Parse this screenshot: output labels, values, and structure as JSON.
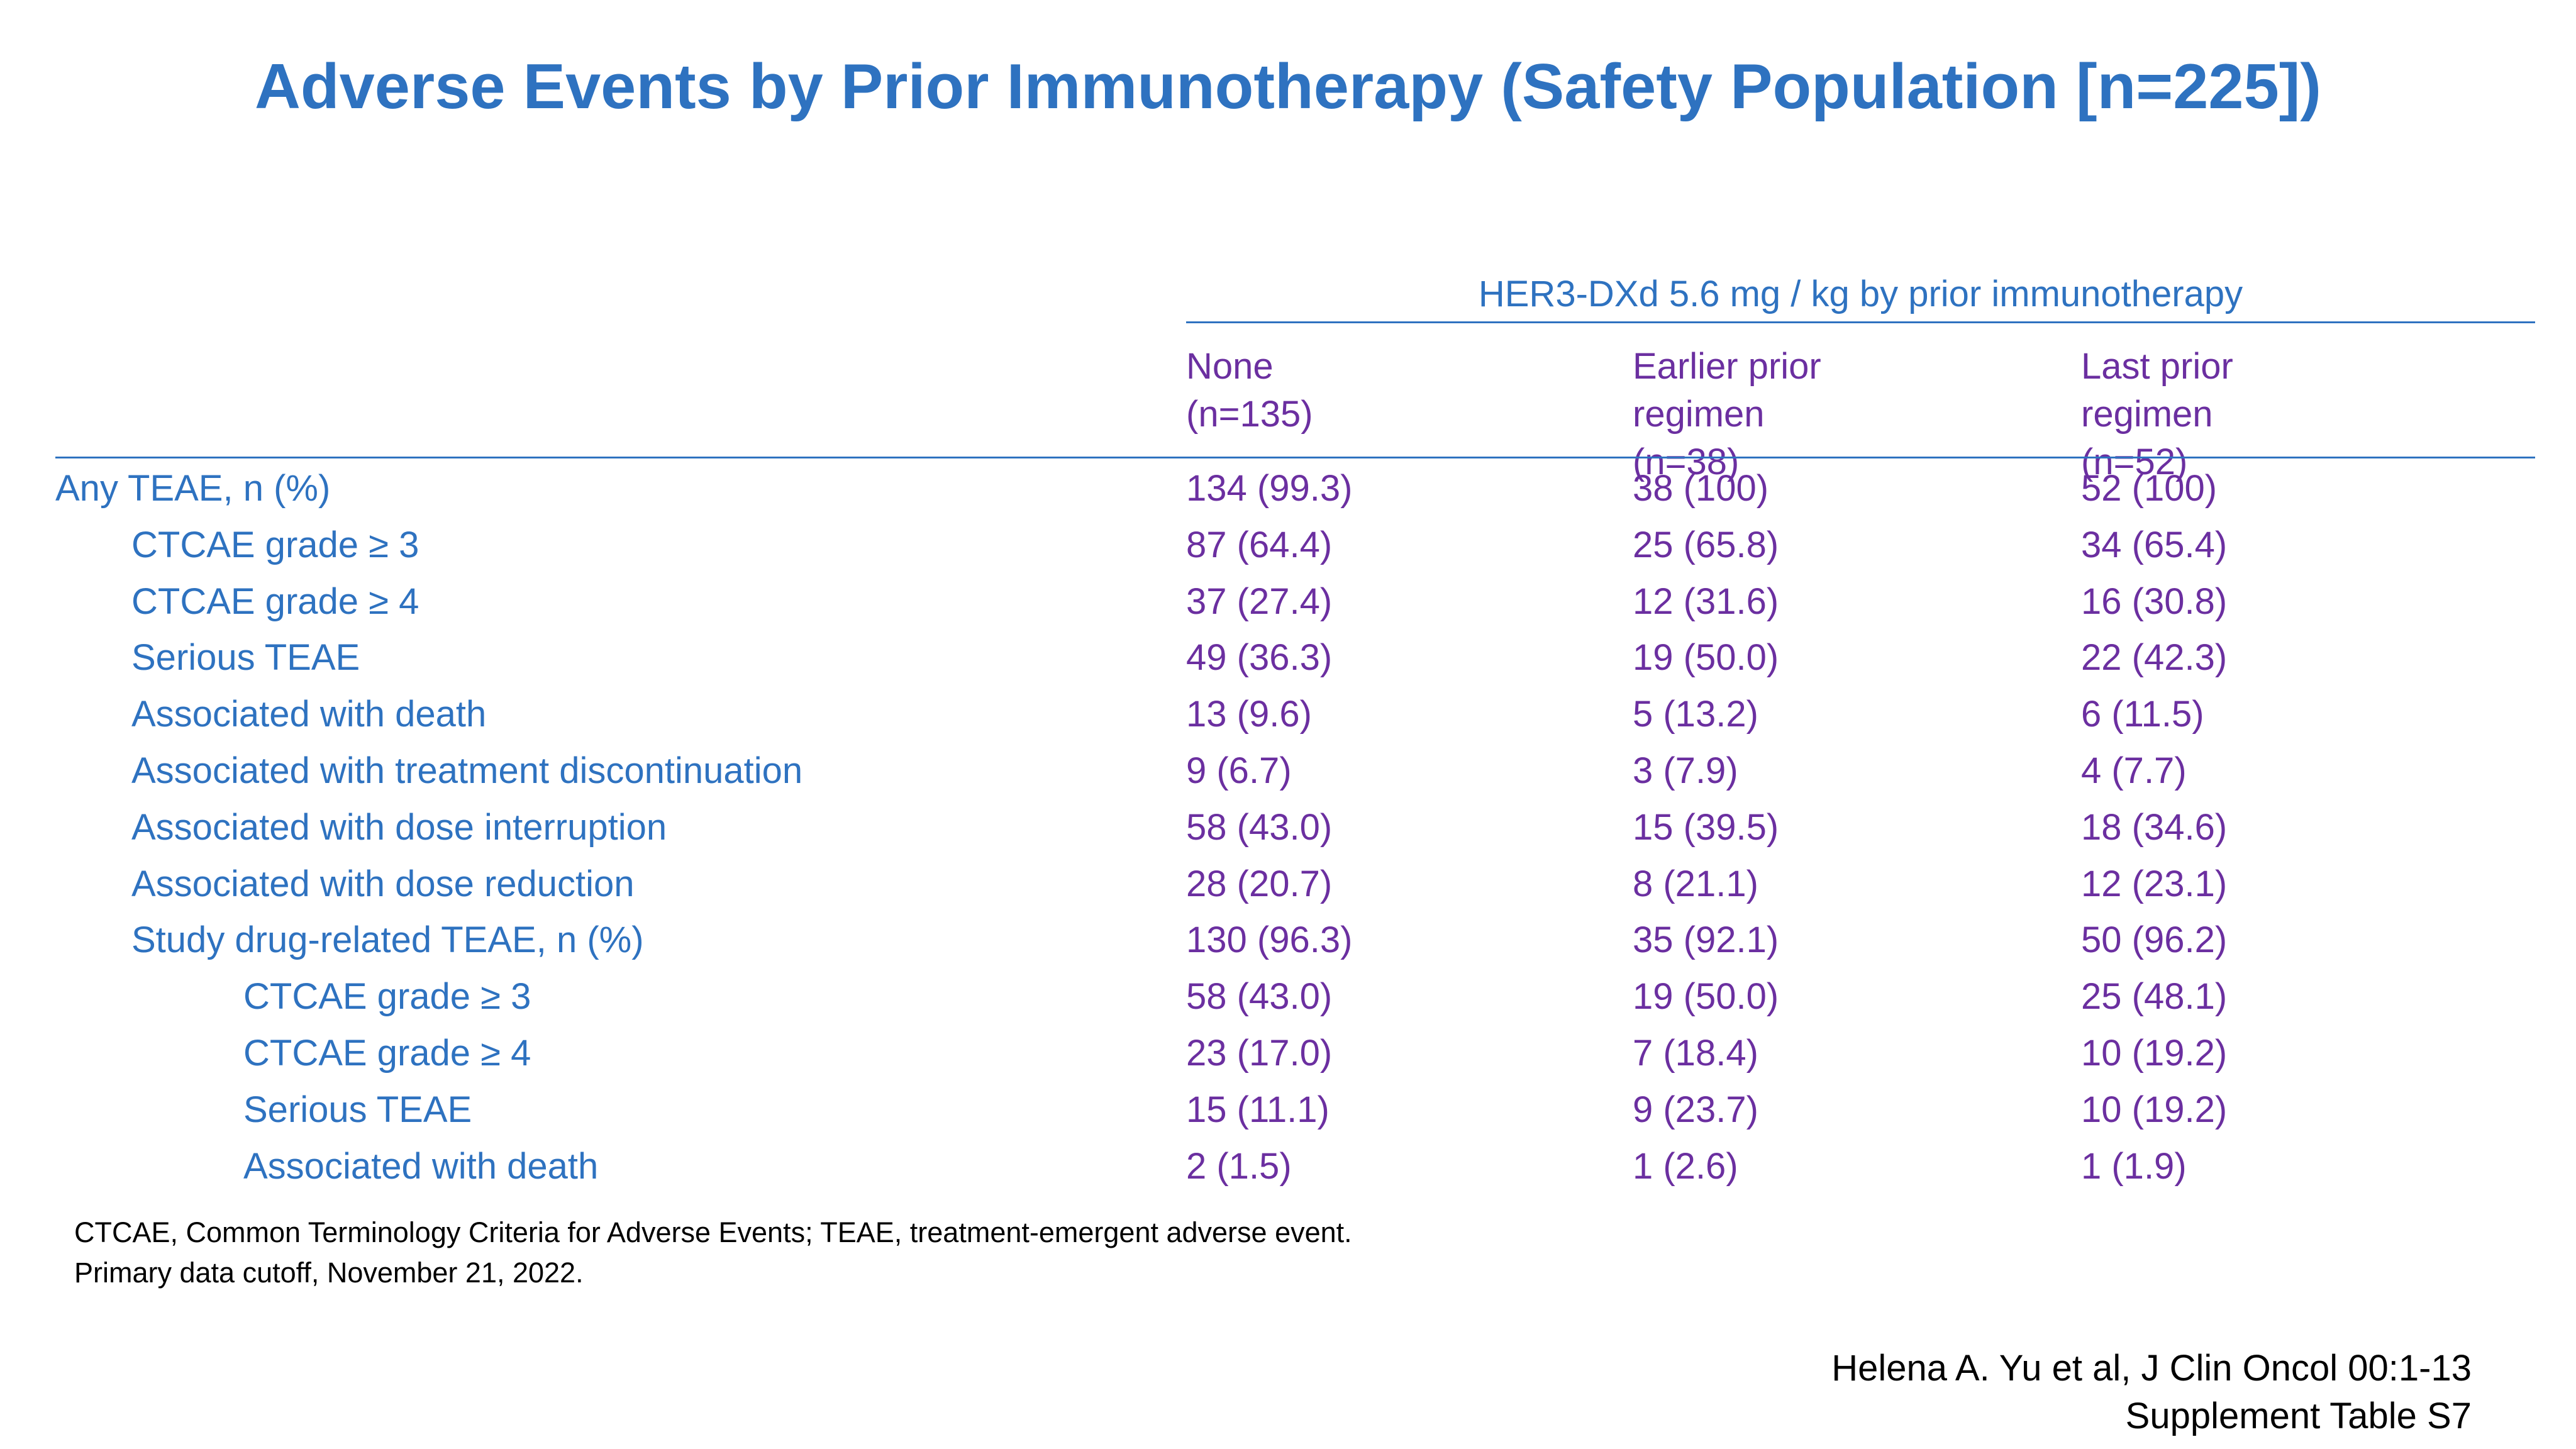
{
  "title": "Adverse Events by Prior Immunotherapy (Safety Population [n=225])",
  "table": {
    "spanner": "HER3-DXd 5.6 mg / kg by prior immunotherapy",
    "columns": [
      [
        "None",
        "(n=135)"
      ],
      [
        "Earlier prior",
        "regimen",
        "(n=38)"
      ],
      [
        "Last prior",
        "regimen",
        "(n=52)"
      ]
    ],
    "rows": [
      {
        "label": "Any TEAE, n (%)",
        "indent": 0,
        "values": [
          "134 (99.3)",
          "38 (100)",
          "52 (100)"
        ]
      },
      {
        "label": "CTCAE grade ≥ 3",
        "indent": 1,
        "values": [
          "87 (64.4)",
          "25 (65.8)",
          "34 (65.4)"
        ]
      },
      {
        "label": "CTCAE grade ≥ 4",
        "indent": 1,
        "values": [
          "37 (27.4)",
          "12 (31.6)",
          "16 (30.8)"
        ]
      },
      {
        "label": "Serious TEAE",
        "indent": 1,
        "values": [
          "49 (36.3)",
          "19 (50.0)",
          "22 (42.3)"
        ]
      },
      {
        "label": "Associated with death",
        "indent": 1,
        "values": [
          "13 (9.6)",
          "5 (13.2)",
          "6 (11.5)"
        ]
      },
      {
        "label": "Associated with treatment discontinuation",
        "indent": 1,
        "values": [
          "9 (6.7)",
          "3 (7.9)",
          "4 (7.7)"
        ]
      },
      {
        "label": "Associated with dose interruption",
        "indent": 1,
        "values": [
          "58 (43.0)",
          "15 (39.5)",
          "18 (34.6)"
        ]
      },
      {
        "label": "Associated with dose reduction",
        "indent": 1,
        "values": [
          "28 (20.7)",
          "8 (21.1)",
          "12 (23.1)"
        ]
      },
      {
        "label": "Study drug-related TEAE, n (%)",
        "indent": 1,
        "values": [
          "130 (96.3)",
          "35 (92.1)",
          "50 (96.2)"
        ]
      },
      {
        "label": "CTCAE grade ≥ 3",
        "indent": 2,
        "values": [
          "58 (43.0)",
          "19 (50.0)",
          "25 (48.1)"
        ]
      },
      {
        "label": "CTCAE grade ≥ 4",
        "indent": 2,
        "values": [
          "23 (17.0)",
          "7 (18.4)",
          "10 (19.2)"
        ]
      },
      {
        "label": "Serious TEAE",
        "indent": 2,
        "values": [
          "15 (11.1)",
          "9 (23.7)",
          "10 (19.2)"
        ]
      },
      {
        "label": "Associated with death",
        "indent": 2,
        "values": [
          "2 (1.5)",
          "1 (2.6)",
          "1 (1.9)"
        ]
      }
    ]
  },
  "footnote": [
    "CTCAE, Common Terminology Criteria for Adverse Events; TEAE, treatment-emergent adverse event.",
    "Primary data cutoff, November 21, 2022."
  ],
  "citation": [
    "Helena A. Yu et al, J Clin Oncol 00:1-13",
    "Supplement Table S7"
  ],
  "colors": {
    "label_blue": "#2e72c0",
    "value_purple": "#6b2fa0"
  }
}
